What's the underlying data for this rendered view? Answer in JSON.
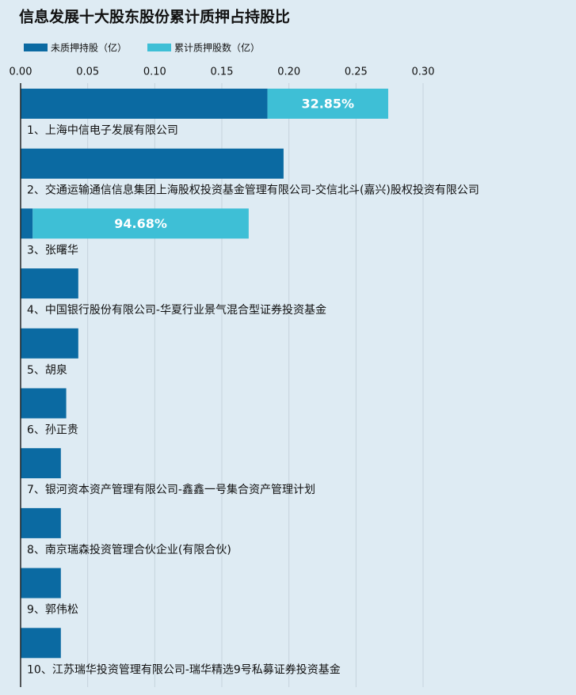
{
  "chart_data": {
    "type": "bar",
    "orientation": "horizontal",
    "stacked": true,
    "title": "信息发展十大股东股份累计质押占持股比",
    "categories": [
      "1、上海中信电子发展有限公司",
      "2、交通运输通信信息集团上海股权投资基金管理有限公司-交信北斗(嘉兴)股权投资有限公司",
      "3、张曙华",
      "4、中国银行股份有限公司-华夏行业景气混合型证券投资基金",
      "5、胡泉",
      "6、孙正贵",
      "7、银河资本资产管理有限公司-鑫鑫一号集合资产管理计划",
      "8、南京瑞森投资管理合伙企业(有限合伙)",
      "9、郭伟松",
      "10、江苏瑞华投资管理有限公司-瑞华精选9号私募证券投资基金"
    ],
    "series": [
      {
        "name": "未质押持股（亿）",
        "color": "#0b6aa2",
        "values": [
          0.184,
          0.196,
          0.009,
          0.043,
          0.043,
          0.034,
          0.03,
          0.03,
          0.03,
          0.03
        ]
      },
      {
        "name": "累计质押股数（亿）",
        "color": "#3ebfd6",
        "values": [
          0.09,
          0,
          0.161,
          0,
          0,
          0,
          0,
          0,
          0,
          0
        ]
      }
    ],
    "ratio_labels": [
      "32.85%",
      null,
      "94.68%",
      null,
      null,
      null,
      null,
      null,
      null,
      null
    ],
    "xlim": [
      0,
      0.3
    ],
    "xticks": [
      {
        "value": 0,
        "label": "0.00"
      },
      {
        "value": 0.05,
        "label": "0.05"
      },
      {
        "value": 0.1,
        "label": "0.10"
      },
      {
        "value": 0.15,
        "label": "0.15"
      },
      {
        "value": 0.2,
        "label": "0.20"
      },
      {
        "value": 0.25,
        "label": "0.25"
      },
      {
        "value": 0.3,
        "label": "0.30"
      }
    ],
    "grid": true,
    "legend": "top-left"
  }
}
